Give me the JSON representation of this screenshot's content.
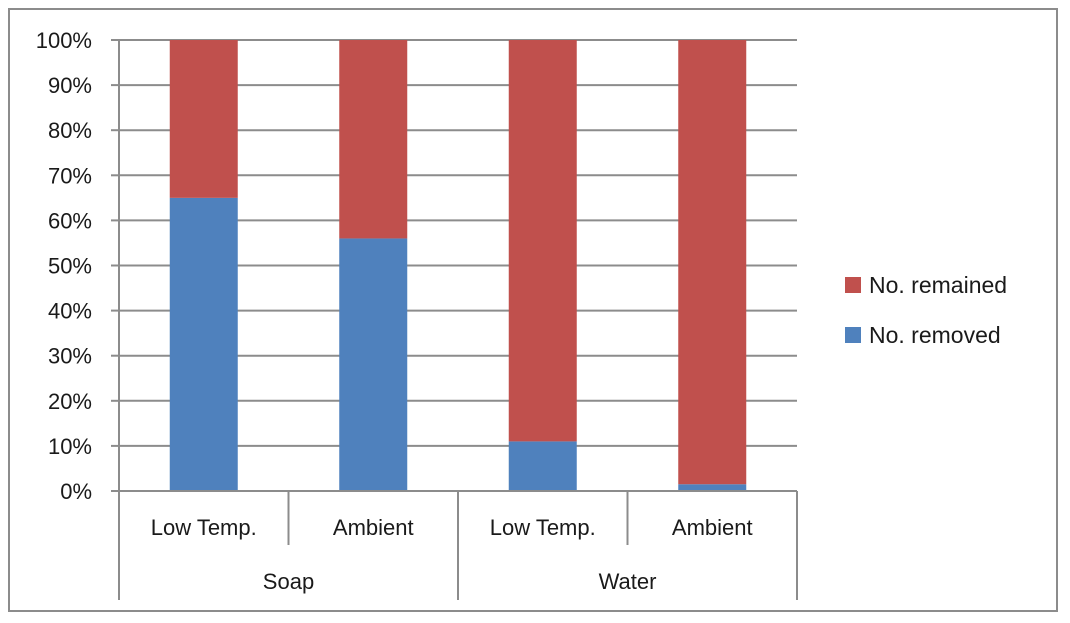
{
  "chart_data": {
    "type": "bar",
    "stacked": true,
    "percent": true,
    "categories": [
      "Low Temp.",
      "Ambient",
      "Low Temp.",
      "Ambient"
    ],
    "groups": [
      {
        "label": "Soap",
        "categories": [
          "Low Temp.",
          "Ambient"
        ]
      },
      {
        "label": "Water",
        "categories": [
          "Low Temp.",
          "Ambient"
        ]
      }
    ],
    "series": [
      {
        "name": "No. removed",
        "color": "#4f81bd",
        "values": [
          65,
          56,
          11,
          1.5
        ]
      },
      {
        "name": "No. remained",
        "color": "#c0504d",
        "values": [
          35,
          44,
          89,
          98.5
        ]
      }
    ],
    "ylim": [
      0,
      100
    ],
    "yticks": [
      "0%",
      "10%",
      "20%",
      "30%",
      "40%",
      "50%",
      "60%",
      "70%",
      "80%",
      "90%",
      "100%"
    ],
    "grid": true,
    "legend": {
      "position": "right",
      "order": [
        "No. remained",
        "No. removed"
      ]
    }
  }
}
